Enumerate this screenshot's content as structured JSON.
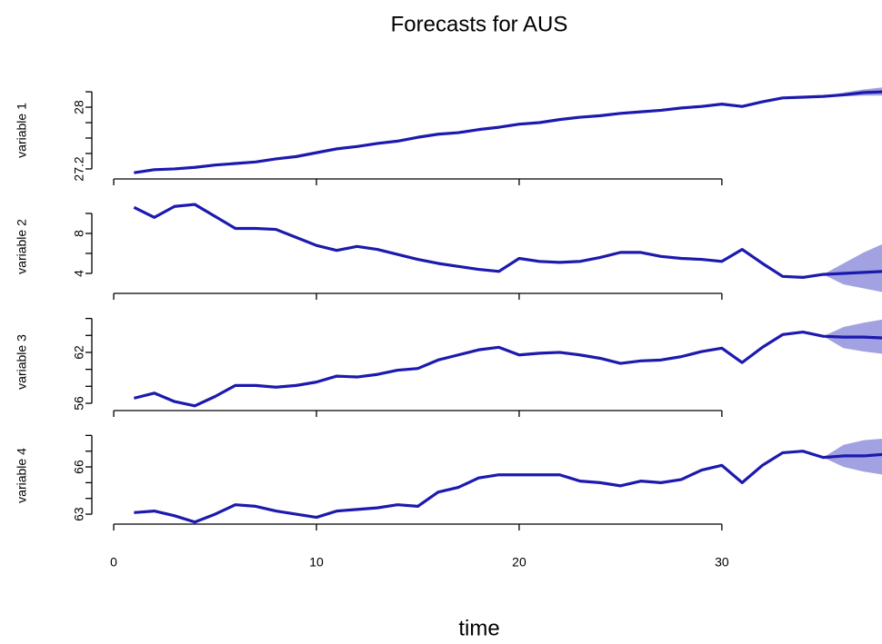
{
  "title": "Forecasts for AUS",
  "x_label": "time",
  "chart_data": [
    {
      "type": "line",
      "y_label": "variable 1",
      "x": [
        1,
        2,
        3,
        4,
        5,
        6,
        7,
        8,
        9,
        10,
        11,
        12,
        13,
        14,
        15,
        16,
        17,
        18,
        19,
        20,
        21,
        22,
        23,
        24,
        25,
        26,
        27,
        28,
        29,
        30,
        31,
        32,
        33,
        34,
        35,
        36,
        37,
        38
      ],
      "values": [
        27.15,
        27.19,
        27.2,
        27.22,
        27.25,
        27.27,
        27.29,
        27.33,
        27.36,
        27.41,
        27.46,
        27.49,
        27.53,
        27.56,
        27.61,
        27.65,
        27.67,
        27.71,
        27.74,
        27.78,
        27.8,
        27.84,
        27.87,
        27.89,
        27.92,
        27.94,
        27.96,
        27.99,
        28.01,
        28.04,
        28.01,
        28.07,
        28.12,
        28.13,
        28.14,
        28.16,
        28.19,
        28.2
      ],
      "band": {
        "x": [
          35,
          36,
          37,
          38
        ],
        "lower": [
          28.14,
          28.14,
          28.15,
          28.15
        ],
        "upper": [
          28.14,
          28.19,
          28.23,
          28.26
        ]
      },
      "color": "#1c1aae",
      "band_color": "#a2a2e2",
      "xlim": [
        -1.08,
        37.9
      ],
      "xticks": [
        0,
        10,
        20,
        30
      ],
      "show_xtick_labels": false,
      "ylim": [
        27.07,
        28.33
      ],
      "yticks": [
        27.2,
        28.0
      ],
      "yminorticks": [
        27.4,
        27.6,
        27.8,
        28.2
      ]
    },
    {
      "type": "line",
      "y_label": "variable 2",
      "x": [
        1,
        2,
        3,
        4,
        5,
        6,
        7,
        8,
        9,
        10,
        11,
        12,
        13,
        14,
        15,
        16,
        17,
        18,
        19,
        20,
        21,
        22,
        23,
        24,
        25,
        26,
        27,
        28,
        29,
        30,
        31,
        32,
        33,
        34,
        35,
        36,
        37,
        38
      ],
      "values": [
        10.6,
        9.6,
        10.7,
        10.9,
        9.7,
        8.5,
        8.5,
        8.4,
        7.6,
        6.8,
        6.3,
        6.7,
        6.4,
        5.9,
        5.4,
        5.0,
        4.7,
        4.4,
        4.2,
        5.5,
        5.2,
        5.1,
        5.2,
        5.6,
        6.1,
        6.1,
        5.7,
        5.5,
        5.4,
        5.2,
        6.4,
        5.0,
        3.7,
        3.6,
        3.9,
        4.0,
        4.1,
        4.2
      ],
      "band": {
        "x": [
          35,
          36,
          37,
          38
        ],
        "lower": [
          3.9,
          2.9,
          2.5,
          2.1
        ],
        "upper": [
          3.9,
          5.0,
          6.1,
          7.0
        ]
      },
      "color": "#1c1aae",
      "band_color": "#a2a2e2",
      "xlim": [
        -1.08,
        37.9
      ],
      "xticks": [
        0,
        10,
        20,
        30
      ],
      "show_xtick_labels": false,
      "ylim": [
        2.0,
        11.36
      ],
      "yticks": [
        4,
        8
      ],
      "yminorticks": [
        6,
        10
      ]
    },
    {
      "type": "line",
      "y_label": "variable 3",
      "x": [
        1,
        2,
        3,
        4,
        5,
        6,
        7,
        8,
        9,
        10,
        11,
        12,
        13,
        14,
        15,
        16,
        17,
        18,
        19,
        20,
        21,
        22,
        23,
        24,
        25,
        26,
        27,
        28,
        29,
        30,
        31,
        32,
        33,
        34,
        35,
        36,
        37,
        38
      ],
      "values": [
        56.6,
        57.2,
        56.2,
        55.7,
        56.8,
        58.1,
        58.1,
        57.9,
        58.1,
        58.5,
        59.2,
        59.1,
        59.4,
        59.9,
        60.1,
        61.1,
        61.7,
        62.3,
        62.6,
        61.7,
        61.9,
        62.0,
        61.7,
        61.3,
        60.7,
        61.0,
        61.1,
        61.5,
        62.1,
        62.5,
        60.8,
        62.6,
        64.1,
        64.4,
        63.9,
        63.8,
        63.8,
        63.7
      ],
      "band": {
        "x": [
          35,
          36,
          37,
          38
        ],
        "lower": [
          63.9,
          62.5,
          62.1,
          61.8
        ],
        "upper": [
          63.9,
          65.0,
          65.5,
          65.9
        ]
      },
      "color": "#1c1aae",
      "band_color": "#a2a2e2",
      "xlim": [
        -1.08,
        37.9
      ],
      "xticks": [
        0,
        10,
        20,
        30
      ],
      "show_xtick_labels": false,
      "ylim": [
        55.14,
        66.6
      ],
      "yticks": [
        56,
        62
      ],
      "yminorticks": [
        58,
        60,
        64,
        66
      ]
    },
    {
      "type": "line",
      "y_label": "variable 4",
      "x": [
        1,
        2,
        3,
        4,
        5,
        6,
        7,
        8,
        9,
        10,
        11,
        12,
        13,
        14,
        15,
        16,
        17,
        18,
        19,
        20,
        21,
        22,
        23,
        24,
        25,
        26,
        27,
        28,
        29,
        30,
        31,
        32,
        33,
        34,
        35,
        36,
        37,
        38
      ],
      "values": [
        63.1,
        63.2,
        62.9,
        62.5,
        63.0,
        63.6,
        63.5,
        63.2,
        63.0,
        62.8,
        63.2,
        63.3,
        63.4,
        63.6,
        63.5,
        64.4,
        64.7,
        65.3,
        65.5,
        65.5,
        65.5,
        65.5,
        65.1,
        65.0,
        64.8,
        65.1,
        65.0,
        65.2,
        65.8,
        66.1,
        65.0,
        66.1,
        66.9,
        67.0,
        66.6,
        66.7,
        66.7,
        66.8
      ],
      "band": {
        "x": [
          35,
          36,
          37,
          38
        ],
        "lower": [
          66.6,
          66.0,
          65.7,
          65.5
        ],
        "upper": [
          66.6,
          67.4,
          67.7,
          67.8
        ]
      },
      "color": "#1c1aae",
      "band_color": "#a2a2e2",
      "xlim": [
        -1.08,
        37.9
      ],
      "xticks": [
        0,
        10,
        20,
        30
      ],
      "show_xtick_labels": true,
      "ylim": [
        62.37,
        68.54
      ],
      "yticks": [
        63,
        66
      ],
      "yminorticks": [
        64,
        65,
        67,
        68
      ]
    }
  ]
}
